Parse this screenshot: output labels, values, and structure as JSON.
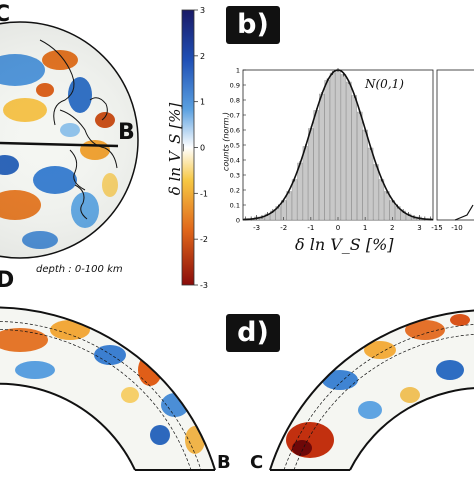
{
  "panel_b_label": "b)",
  "panel_d_label": "d)",
  "globe": {
    "point_c": "C",
    "point_b": "B",
    "point_d": "D",
    "depth_label": "depth : 0-100 km"
  },
  "colorbar": {
    "ticks": [
      "3",
      "2",
      "1",
      "0",
      "-1",
      "-2",
      "-3"
    ],
    "label": "δ ln V_S [%]",
    "colors": [
      "#1a1a66",
      "#1f4fb5",
      "#5aa0e0",
      "#ffffff",
      "#f6c743",
      "#e0671b",
      "#8a0c0a"
    ]
  },
  "histogram": {
    "ylabel": "counts (norm.)",
    "y_ticks": [
      "1",
      "0.9",
      "0.8",
      "0.7",
      "0.6",
      "0.5",
      "0.4",
      "0.3",
      "0.2",
      "0.1",
      "0"
    ],
    "x_ticks": [
      "-3",
      "-2",
      "-1",
      "0",
      "1",
      "2",
      "3"
    ],
    "xlabel": "δ ln V_S [%]",
    "legend": "N(0,1)",
    "second_panel_ticks": [
      "-15",
      "-10"
    ]
  },
  "cross_sections": {
    "left_end": "B",
    "right_start": "C"
  },
  "chart_data": {
    "type": "bar",
    "title": "",
    "xlabel": "δ ln V_S [%]",
    "ylabel": "counts (norm.)",
    "xlim": [
      -3.5,
      3.5
    ],
    "ylim": [
      0,
      1
    ],
    "categories": [
      -3.4,
      -3.2,
      -3.0,
      -2.8,
      -2.6,
      -2.4,
      -2.2,
      -2.0,
      -1.8,
      -1.6,
      -1.4,
      -1.2,
      -1.0,
      -0.8,
      -0.6,
      -0.4,
      -0.2,
      0.0,
      0.2,
      0.4,
      0.6,
      0.8,
      1.0,
      1.2,
      1.4,
      1.6,
      1.8,
      2.0,
      2.2,
      2.4,
      2.6,
      2.8,
      3.0,
      3.2,
      3.4
    ],
    "values": [
      0.01,
      0.01,
      0.02,
      0.02,
      0.04,
      0.06,
      0.09,
      0.13,
      0.19,
      0.27,
      0.38,
      0.49,
      0.61,
      0.73,
      0.84,
      0.93,
      0.98,
      1.0,
      0.97,
      0.92,
      0.83,
      0.72,
      0.6,
      0.48,
      0.37,
      0.27,
      0.19,
      0.13,
      0.09,
      0.06,
      0.04,
      0.02,
      0.02,
      0.01,
      0.01
    ],
    "series": [
      {
        "name": "N(0,1)",
        "type": "line"
      }
    ]
  }
}
